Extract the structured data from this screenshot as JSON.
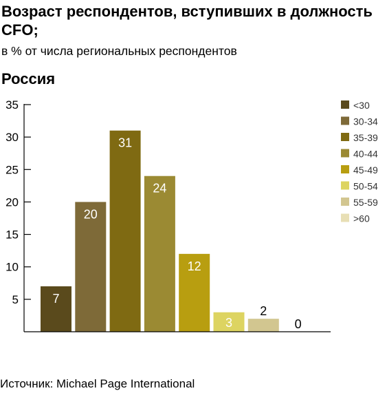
{
  "header": {
    "title": "Возраст респондентов, вступивших в должность CFO;",
    "subtitle": "в % от числа региональных респондентов"
  },
  "panel": {
    "title": "Россия"
  },
  "footer": {
    "source": "Источник: Michael Page International"
  },
  "chart_data": {
    "type": "bar",
    "title": "Россия",
    "categories": [
      "<30",
      "30-34",
      "35-39",
      "40-44",
      "45-49",
      "50-54",
      "55-59",
      ">60"
    ],
    "values": [
      7,
      20,
      31,
      24,
      12,
      3,
      2,
      0
    ],
    "colors": [
      "#5a4a1c",
      "#7e6a38",
      "#7f6a12",
      "#9b8a33",
      "#b89e10",
      "#ddd461",
      "#d2c690",
      "#e8dfb5"
    ],
    "label_colors": [
      "#ffffff",
      "#ffffff",
      "#ffffff",
      "#ffffff",
      "#ffffff",
      "#ffffff",
      "#000000",
      "#000000"
    ],
    "yticks": [
      5,
      10,
      15,
      20,
      25,
      30,
      35
    ],
    "ylim": [
      0,
      35
    ],
    "xlabel": "",
    "ylabel": "",
    "legend_position": "right",
    "grid": false
  }
}
